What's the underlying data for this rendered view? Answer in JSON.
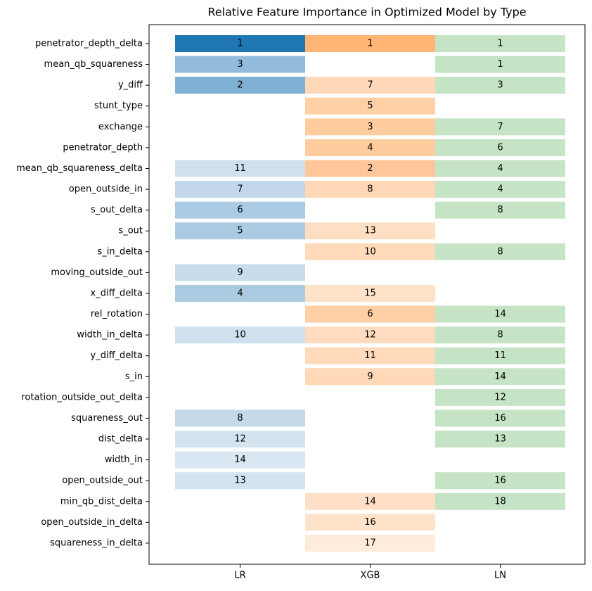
{
  "chart_data": {
    "type": "rank-grid",
    "title": "Relative Feature Importance in Optimized Model by Type",
    "categories": [
      "penetrator_depth_delta",
      "mean_qb_squareness",
      "y_diff",
      "stunt_type",
      "exchange",
      "penetrator_depth",
      "mean_qb_squareness_delta",
      "open_outside_in",
      "s_out_delta",
      "s_out",
      "s_in_delta",
      "moving_outside_out",
      "x_diff_delta",
      "rel_rotation",
      "width_in_delta",
      "y_diff_delta",
      "s_in",
      "rotation_outside_out_delta",
      "squareness_out",
      "dist_delta",
      "width_in",
      "open_outside_out",
      "min_qb_dist_delta",
      "open_outside_in_delta",
      "squareness_in_delta"
    ],
    "series": [
      {
        "name": "LR",
        "values": [
          1,
          3,
          2,
          null,
          null,
          null,
          11,
          7,
          6,
          5,
          null,
          9,
          4,
          null,
          10,
          null,
          null,
          null,
          8,
          12,
          14,
          13,
          null,
          null,
          null
        ],
        "colors": [
          "#1f77b4",
          "#93bbdb",
          "#80b0d4",
          null,
          null,
          null,
          "#cfe1ee",
          "#c2d8ea",
          "#aacbe3",
          "#abcbe3",
          null,
          "#c8ddec",
          "#abcbe3",
          null,
          "#cfe1ee",
          null,
          null,
          null,
          "#c4dae9",
          "#d3e3ef",
          "#d9e7f2",
          "#d3e3ef",
          null,
          null,
          null
        ]
      },
      {
        "name": "XGB",
        "values": [
          1,
          null,
          7,
          5,
          3,
          4,
          2,
          8,
          null,
          13,
          10,
          null,
          15,
          6,
          12,
          11,
          9,
          null,
          null,
          null,
          null,
          null,
          14,
          16,
          17
        ],
        "colors": [
          "#ffb574",
          null,
          "#ffd8b8",
          "#ffcfa5",
          "#ffcc9e",
          "#ffcc9e",
          "#ffc699",
          "#ffd8b8",
          null,
          "#ffdfc4",
          "#ffdbbc",
          null,
          "#ffe2c9",
          "#ffcfa5",
          "#ffdcbf",
          "#ffdbbc",
          "#ffd8b8",
          null,
          null,
          null,
          null,
          null,
          "#ffe0c6",
          "#ffe3cb",
          "#ffebda"
        ]
      },
      {
        "name": "LN",
        "values": [
          1,
          1,
          3,
          null,
          7,
          6,
          4,
          4,
          8,
          null,
          8,
          null,
          null,
          14,
          8,
          11,
          14,
          12,
          16,
          13,
          null,
          16,
          18,
          null,
          null
        ],
        "colors": [
          "#c4e4c5",
          "#c4e4c5",
          "#c4e4c5",
          null,
          "#c4e4c5",
          "#c4e4c5",
          "#c4e4c5",
          "#c4e4c5",
          "#c4e4c5",
          null,
          "#c4e4c5",
          null,
          null,
          "#c4e4c5",
          "#c4e4c5",
          "#c4e4c5",
          "#c4e4c5",
          "#c4e4c5",
          "#c4e4c5",
          "#c4e4c5",
          null,
          "#c4e4c5",
          "#c4e4c5",
          null,
          null
        ]
      }
    ]
  }
}
